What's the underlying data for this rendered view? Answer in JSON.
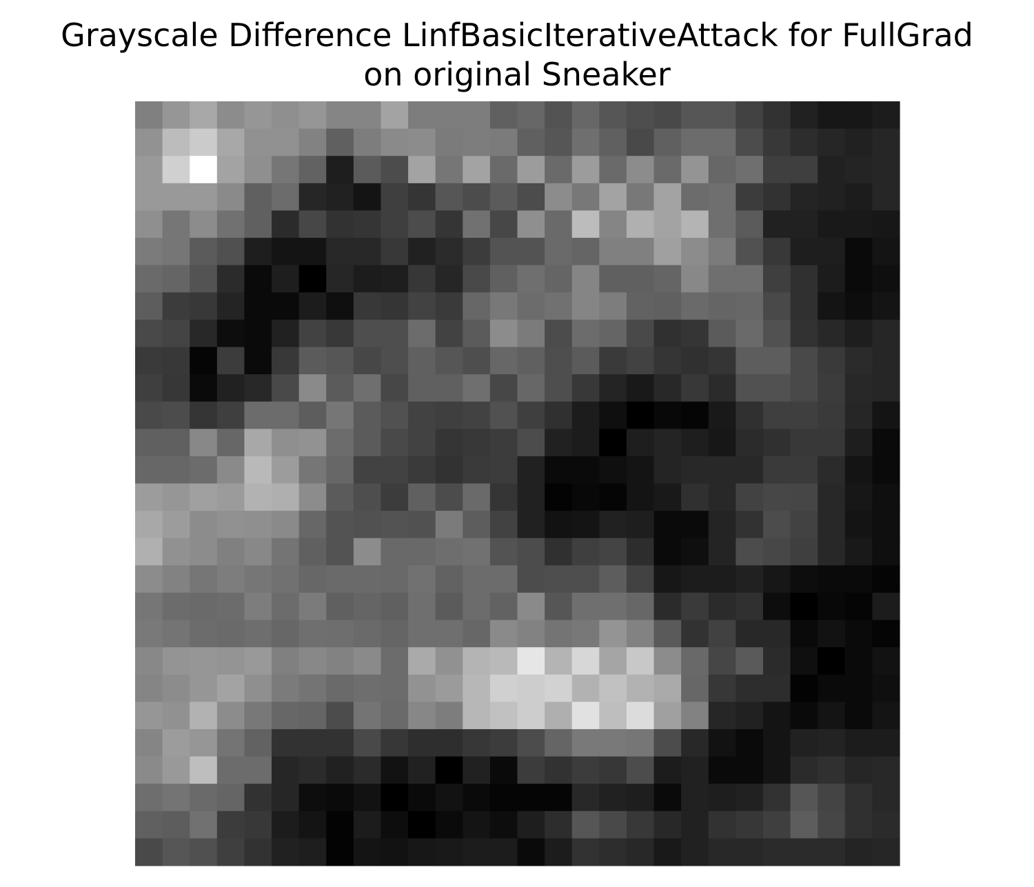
{
  "figure": {
    "title_line1": "Grayscale Difference LinfBasicIterativeAttack for FullGrad",
    "title_line2": "on original Sneaker"
  },
  "chart_data": {
    "type": "heatmap",
    "colormap": "gray",
    "vmin": 0,
    "vmax": 255,
    "rows": 28,
    "cols": 28,
    "grid": false,
    "axes_visible": false,
    "values": [
      [
        128,
        150,
        168,
        140,
        150,
        143,
        150,
        133,
        133,
        163,
        125,
        125,
        125,
        96,
        103,
        83,
        103,
        86,
        78,
        73,
        86,
        86,
        66,
        50,
        33,
        23,
        23,
        28
      ],
      [
        146,
        188,
        203,
        168,
        145,
        145,
        130,
        96,
        125,
        138,
        140,
        123,
        125,
        123,
        96,
        86,
        111,
        96,
        73,
        96,
        108,
        108,
        76,
        56,
        45,
        38,
        33,
        38
      ],
      [
        153,
        208,
        255,
        163,
        143,
        118,
        98,
        30,
        91,
        76,
        163,
        118,
        163,
        106,
        156,
        106,
        156,
        106,
        140,
        106,
        148,
        103,
        111,
        63,
        63,
        33,
        36,
        38
      ],
      [
        153,
        153,
        153,
        138,
        96,
        108,
        38,
        33,
        20,
        63,
        53,
        86,
        76,
        91,
        76,
        140,
        120,
        163,
        120,
        163,
        108,
        111,
        60,
        50,
        36,
        33,
        28,
        38
      ],
      [
        143,
        118,
        140,
        113,
        96,
        43,
        71,
        50,
        53,
        63,
        76,
        53,
        113,
        71,
        143,
        106,
        188,
        133,
        176,
        163,
        180,
        111,
        91,
        33,
        33,
        25,
        25,
        23
      ],
      [
        123,
        118,
        91,
        80,
        30,
        20,
        20,
        40,
        40,
        56,
        33,
        43,
        60,
        83,
        83,
        106,
        101,
        128,
        128,
        160,
        140,
        123,
        81,
        56,
        30,
        30,
        10,
        20
      ],
      [
        106,
        101,
        83,
        43,
        10,
        30,
        0,
        38,
        28,
        30,
        55,
        38,
        73,
        96,
        111,
        101,
        133,
        96,
        96,
        101,
        136,
        111,
        111,
        63,
        48,
        28,
        10,
        15
      ],
      [
        93,
        60,
        56,
        36,
        10,
        10,
        28,
        15,
        56,
        53,
        66,
        58,
        103,
        120,
        108,
        113,
        133,
        125,
        98,
        96,
        106,
        101,
        103,
        73,
        48,
        20,
        13,
        20
      ],
      [
        73,
        68,
        40,
        13,
        10,
        33,
        66,
        56,
        78,
        78,
        108,
        66,
        91,
        140,
        123,
        76,
        108,
        101,
        73,
        48,
        53,
        91,
        106,
        81,
        50,
        40,
        30,
        38
      ],
      [
        58,
        56,
        5,
        60,
        10,
        56,
        91,
        86,
        71,
        78,
        96,
        86,
        78,
        103,
        96,
        78,
        91,
        58,
        66,
        53,
        48,
        53,
        93,
        93,
        73,
        58,
        43,
        38
      ],
      [
        63,
        55,
        10,
        33,
        40,
        73,
        138,
        91,
        111,
        71,
        96,
        96,
        111,
        71,
        103,
        78,
        56,
        36,
        25,
        40,
        56,
        43,
        81,
        81,
        73,
        60,
        40,
        38
      ],
      [
        73,
        76,
        53,
        63,
        108,
        108,
        93,
        118,
        91,
        81,
        66,
        63,
        66,
        81,
        63,
        48,
        28,
        15,
        0,
        8,
        5,
        25,
        48,
        63,
        63,
        58,
        38,
        20
      ],
      [
        96,
        96,
        136,
        103,
        168,
        143,
        146,
        108,
        91,
        73,
        66,
        53,
        56,
        60,
        76,
        33,
        28,
        0,
        30,
        36,
        30,
        23,
        43,
        48,
        56,
        56,
        30,
        10
      ],
      [
        103,
        103,
        108,
        138,
        185,
        156,
        118,
        103,
        66,
        66,
        58,
        50,
        58,
        60,
        33,
        10,
        10,
        15,
        20,
        36,
        40,
        40,
        40,
        58,
        58,
        43,
        20,
        10
      ],
      [
        156,
        150,
        160,
        155,
        178,
        175,
        140,
        91,
        78,
        60,
        96,
        76,
        106,
        53,
        33,
        3,
        8,
        5,
        20,
        25,
        48,
        40,
        66,
        71,
        70,
        40,
        23,
        15
      ],
      [
        168,
        156,
        140,
        145,
        143,
        138,
        103,
        83,
        81,
        83,
        81,
        123,
        93,
        66,
        33,
        18,
        20,
        33,
        30,
        10,
        10,
        36,
        50,
        76,
        66,
        40,
        20,
        15
      ],
      [
        176,
        145,
        140,
        128,
        136,
        116,
        96,
        83,
        140,
        105,
        105,
        110,
        113,
        83,
        76,
        48,
        63,
        68,
        45,
        10,
        15,
        36,
        76,
        71,
        63,
        40,
        25,
        15
      ],
      [
        140,
        130,
        118,
        125,
        118,
        113,
        103,
        106,
        106,
        105,
        113,
        98,
        108,
        108,
        76,
        78,
        78,
        93,
        66,
        23,
        28,
        28,
        33,
        23,
        13,
        10,
        10,
        5
      ],
      [
        118,
        108,
        106,
        108,
        125,
        108,
        123,
        96,
        101,
        96,
        111,
        91,
        108,
        98,
        138,
        86,
        111,
        111,
        103,
        43,
        58,
        43,
        48,
        13,
        0,
        8,
        5,
        28
      ],
      [
        121,
        116,
        108,
        106,
        110,
        103,
        111,
        110,
        106,
        101,
        111,
        111,
        103,
        138,
        130,
        116,
        120,
        148,
        130,
        90,
        50,
        65,
        40,
        40,
        10,
        18,
        10,
        5
      ],
      [
        136,
        148,
        150,
        148,
        153,
        128,
        136,
        130,
        138,
        108,
        170,
        145,
        180,
        185,
        230,
        180,
        215,
        165,
        200,
        140,
        105,
        70,
        90,
        43,
        15,
        0,
        10,
        18
      ],
      [
        133,
        140,
        150,
        163,
        143,
        123,
        116,
        106,
        110,
        108,
        146,
        155,
        183,
        208,
        205,
        210,
        178,
        193,
        178,
        170,
        103,
        55,
        45,
        45,
        3,
        10,
        10,
        15
      ],
      [
        150,
        145,
        178,
        140,
        120,
        103,
        101,
        76,
        116,
        106,
        135,
        125,
        183,
        193,
        205,
        175,
        225,
        190,
        220,
        160,
        130,
        38,
        33,
        20,
        10,
        20,
        10,
        20
      ],
      [
        133,
        156,
        150,
        116,
        98,
        50,
        50,
        50,
        73,
        55,
        46,
        46,
        55,
        60,
        76,
        101,
        121,
        121,
        118,
        76,
        40,
        18,
        10,
        20,
        33,
        35,
        28,
        28
      ],
      [
        138,
        153,
        190,
        108,
        108,
        38,
        43,
        33,
        43,
        18,
        33,
        0,
        33,
        10,
        60,
        50,
        60,
        55,
        76,
        28,
        33,
        10,
        10,
        20,
        43,
        48,
        38,
        40
      ],
      [
        110,
        116,
        106,
        101,
        50,
        38,
        13,
        10,
        18,
        0,
        10,
        18,
        10,
        5,
        5,
        5,
        40,
        33,
        30,
        10,
        33,
        30,
        33,
        50,
        86,
        68,
        48,
        40
      ],
      [
        96,
        93,
        113,
        60,
        56,
        28,
        20,
        3,
        28,
        13,
        0,
        10,
        20,
        13,
        30,
        45,
        86,
        73,
        56,
        40,
        33,
        50,
        55,
        63,
        93,
        70,
        48,
        43
      ],
      [
        73,
        86,
        80,
        63,
        50,
        33,
        30,
        3,
        20,
        18,
        23,
        25,
        28,
        28,
        10,
        28,
        50,
        45,
        40,
        25,
        33,
        40,
        40,
        43,
        43,
        43,
        36,
        38
      ]
    ]
  }
}
